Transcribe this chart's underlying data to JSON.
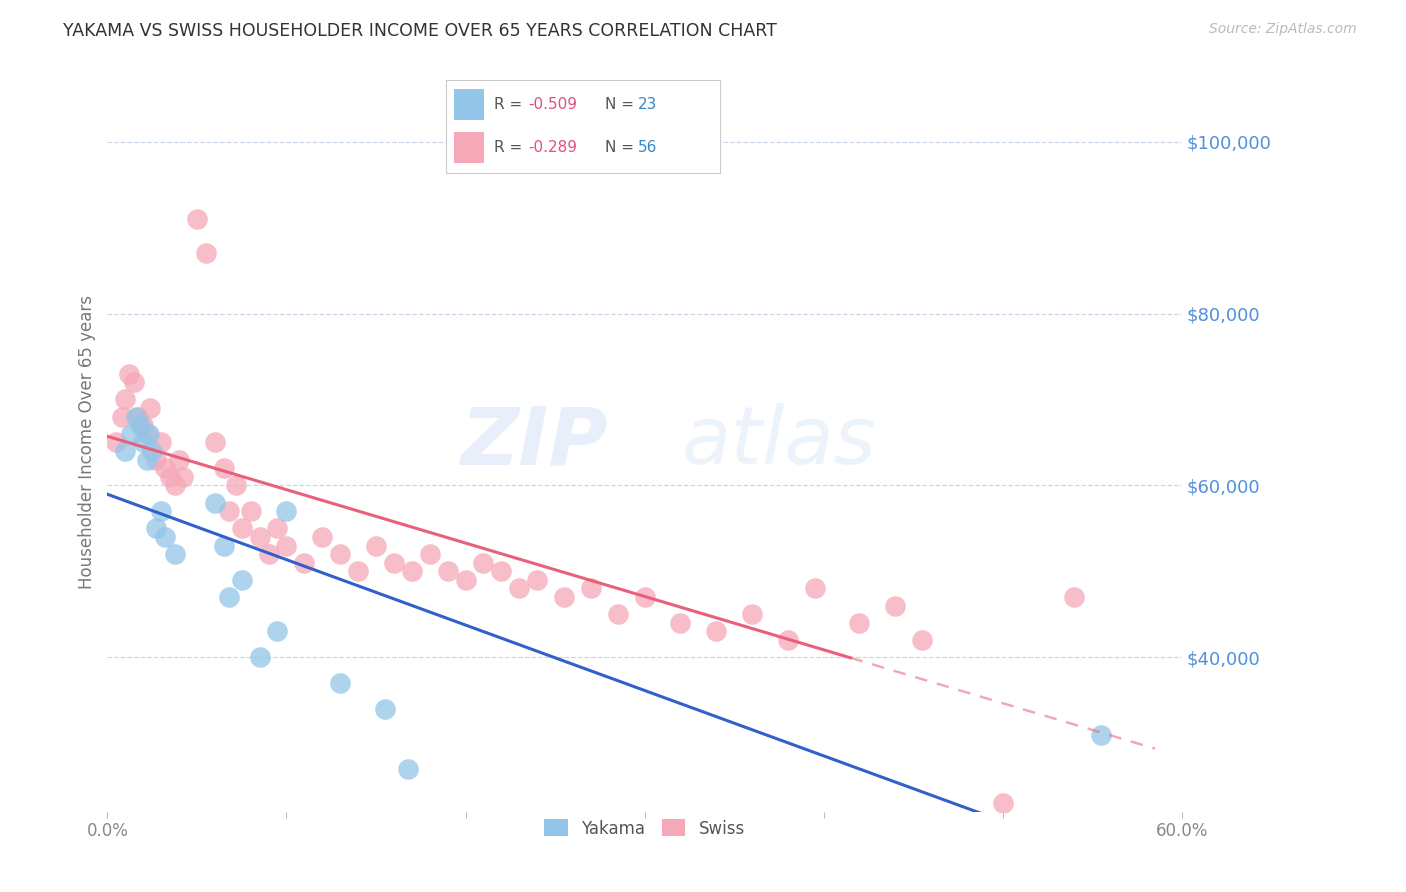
{
  "title": "YAKAMA VS SWISS HOUSEHOLDER INCOME OVER 65 YEARS CORRELATION CHART",
  "source": "Source: ZipAtlas.com",
  "ylabel": "Householder Income Over 65 years",
  "xlim": [
    0.0,
    0.6
  ],
  "ylim": [
    22000,
    108000
  ],
  "yticks": [
    40000,
    60000,
    80000,
    100000
  ],
  "ytick_labels": [
    "$40,000",
    "$60,000",
    "$80,000",
    "$100,000"
  ],
  "xticks": [
    0.0,
    0.1,
    0.2,
    0.3,
    0.4,
    0.5,
    0.6
  ],
  "xtick_labels": [
    "0.0%",
    "",
    "",
    "",
    "",
    "",
    "60.0%"
  ],
  "legend_r_yakama": "-0.509",
  "legend_n_yakama": "23",
  "legend_r_swiss": "-0.289",
  "legend_n_swiss": "56",
  "yakama_color": "#92c5e8",
  "swiss_color": "#f5a8b8",
  "trend_yakama_color": "#3060cc",
  "trend_swiss_color": "#e8607a",
  "background_color": "#ffffff",
  "grid_color": "#c8d8ea",
  "title_color": "#333333",
  "right_label_color": "#5090dd",
  "watermark_zip": "ZIP",
  "watermark_atlas": "atlas",
  "yakama_x": [
    0.01,
    0.013,
    0.016,
    0.018,
    0.02,
    0.022,
    0.023,
    0.025,
    0.027,
    0.03,
    0.032,
    0.038,
    0.06,
    0.065,
    0.068,
    0.075,
    0.085,
    0.095,
    0.1,
    0.13,
    0.155,
    0.168,
    0.555
  ],
  "yakama_y": [
    64000,
    66000,
    68000,
    67000,
    65000,
    63000,
    66000,
    64000,
    55000,
    57000,
    54000,
    52000,
    58000,
    53000,
    47000,
    49000,
    40000,
    43000,
    57000,
    37000,
    34000,
    27000,
    31000
  ],
  "swiss_x": [
    0.005,
    0.008,
    0.01,
    0.012,
    0.015,
    0.017,
    0.02,
    0.022,
    0.024,
    0.027,
    0.03,
    0.032,
    0.035,
    0.038,
    0.04,
    0.042,
    0.05,
    0.055,
    0.06,
    0.065,
    0.068,
    0.072,
    0.075,
    0.08,
    0.085,
    0.09,
    0.095,
    0.1,
    0.11,
    0.12,
    0.13,
    0.14,
    0.15,
    0.16,
    0.17,
    0.18,
    0.19,
    0.2,
    0.21,
    0.22,
    0.23,
    0.24,
    0.255,
    0.27,
    0.285,
    0.3,
    0.32,
    0.34,
    0.36,
    0.38,
    0.395,
    0.42,
    0.44,
    0.455,
    0.5,
    0.54
  ],
  "swiss_y": [
    65000,
    68000,
    70000,
    73000,
    72000,
    68000,
    67000,
    66000,
    69000,
    63000,
    65000,
    62000,
    61000,
    60000,
    63000,
    61000,
    91000,
    87000,
    65000,
    62000,
    57000,
    60000,
    55000,
    57000,
    54000,
    52000,
    55000,
    53000,
    51000,
    54000,
    52000,
    50000,
    53000,
    51000,
    50000,
    52000,
    50000,
    49000,
    51000,
    50000,
    48000,
    49000,
    47000,
    48000,
    45000,
    47000,
    44000,
    43000,
    45000,
    42000,
    48000,
    44000,
    46000,
    42000,
    23000,
    47000
  ],
  "trend_yakama_x0": 0.0,
  "trend_yakama_x1": 0.6,
  "trend_swiss_solid_x0": 0.0,
  "trend_swiss_solid_x1": 0.415,
  "trend_swiss_dash_x0": 0.415,
  "trend_swiss_dash_x1": 0.585
}
